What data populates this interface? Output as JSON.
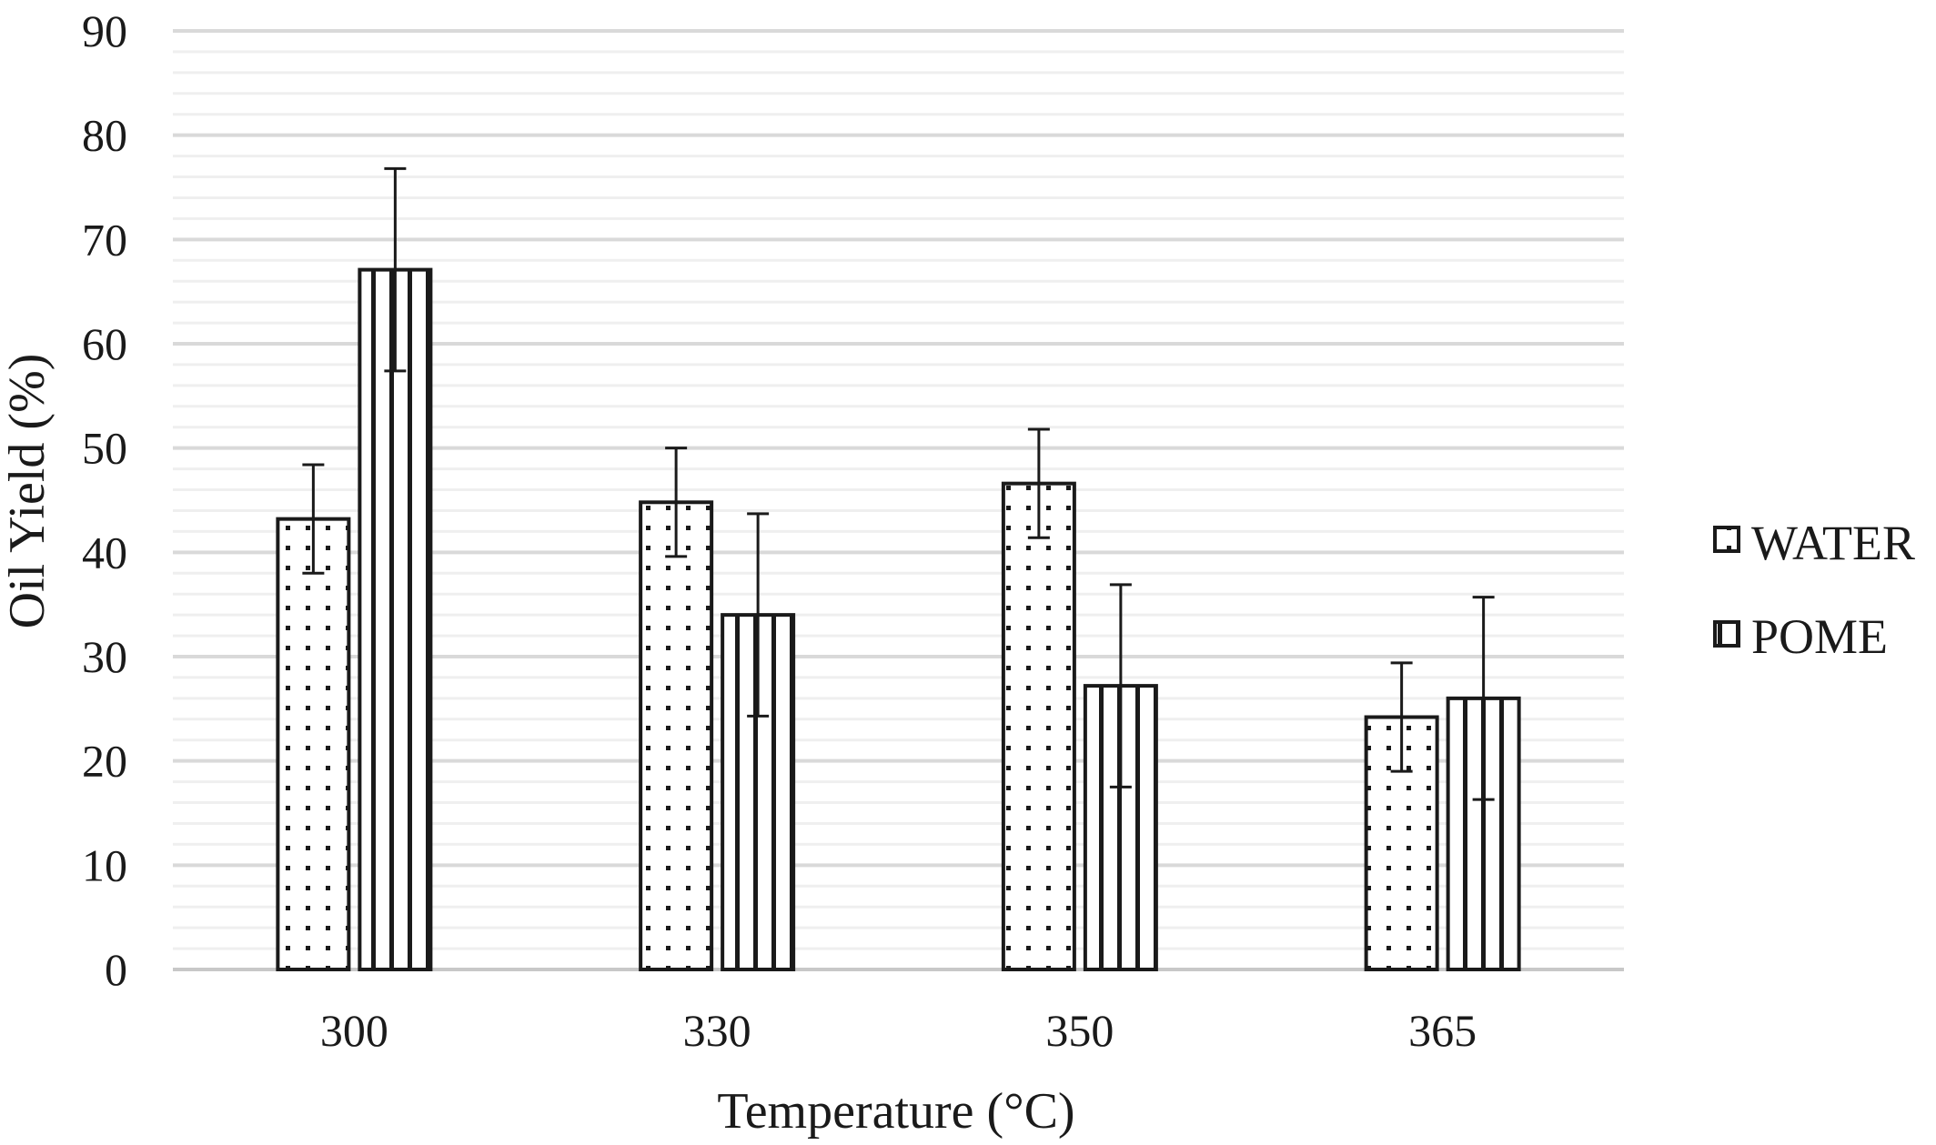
{
  "chart_data": {
    "type": "bar",
    "xlabel": "Temperature (°C)",
    "ylabel": "Oil Yield (%)",
    "categories": [
      "300",
      "330",
      "350",
      "365"
    ],
    "ylim": [
      0,
      90
    ],
    "yticks": [
      "0",
      "10",
      "20",
      "30",
      "40",
      "50",
      "60",
      "70",
      "80",
      "90"
    ],
    "major_grid_step": 10,
    "minor_grid_step": 2,
    "grid": true,
    "legend_position": "right",
    "series": [
      {
        "name": "WATER",
        "pattern": "dots",
        "values": [
          43.2,
          44.8,
          46.6,
          24.2
        ],
        "error": [
          5.2,
          5.2,
          5.2,
          5.2
        ]
      },
      {
        "name": "POME",
        "pattern": "vertical-lines",
        "values": [
          67.1,
          34.0,
          27.2,
          26.0
        ],
        "error": [
          9.7,
          9.7,
          9.7,
          9.7
        ]
      }
    ],
    "colors": {
      "bar_stroke": "#1a1a1a",
      "bar_fill": "#ffffff",
      "major_grid": "#d9d9d9",
      "minor_grid": "#efefef"
    }
  }
}
